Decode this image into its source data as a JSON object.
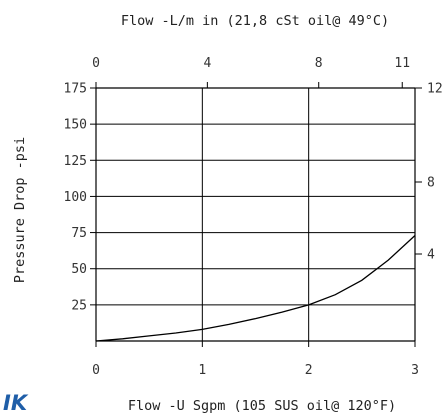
{
  "chart_data": {
    "type": "line",
    "title": "",
    "top_xlabel": "Flow -L/m in (21,8 cSt oil@ 49°C)",
    "xlabel": "Flow -U Sgpm (105 SUS oil@ 120°F)",
    "ylabel": "Pressure Drop -psi",
    "xlim": [
      0,
      3
    ],
    "ylim": [
      0,
      175
    ],
    "grid": true,
    "x_ticks": [
      0,
      1,
      2,
      3
    ],
    "y_ticks": [
      25,
      50,
      75,
      100,
      125,
      150,
      175
    ],
    "top_ticks": [
      0,
      4,
      8,
      11
    ],
    "right_ticks": [
      4,
      8,
      12
    ],
    "series": [
      {
        "x": [
          0,
          0.25,
          0.5,
          0.75,
          1.0,
          1.25,
          1.5,
          1.75,
          2.0,
          2.25,
          2.5,
          2.75,
          3.0
        ],
        "values": [
          0,
          1.5,
          3.5,
          5.5,
          8,
          11.5,
          15.5,
          20,
          25,
          32,
          42,
          56,
          73
        ]
      }
    ]
  },
  "logo": {
    "text": "IK",
    "color": "#1f5ea8"
  },
  "line_color": "#000000"
}
